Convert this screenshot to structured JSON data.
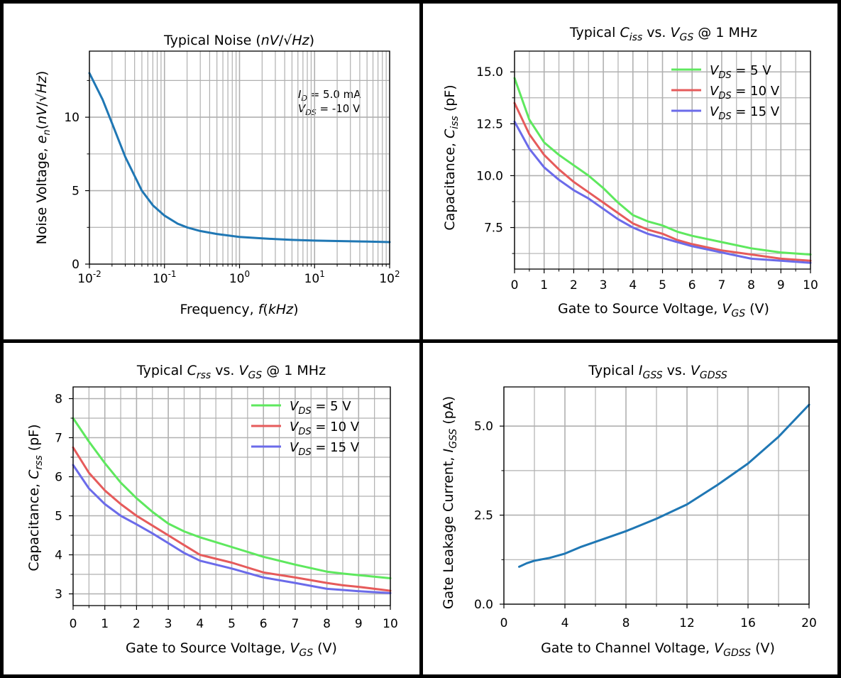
{
  "chart_data": [
    {
      "id": "noise",
      "type": "line",
      "title": "Typical Noise (nV/√Hz)",
      "xlabel": "Frequency, f(kHz)",
      "ylabel": "Noise Voltage, e_n(nV/√Hz)",
      "xscale": "log",
      "xlim": [
        0.01,
        100
      ],
      "ylim": [
        0,
        14.5
      ],
      "xticks": [
        0.01,
        0.1,
        1,
        10,
        100
      ],
      "xtick_labels": [
        "10⁻²",
        "10⁻¹",
        "10⁰",
        "10¹",
        "10²"
      ],
      "yticks": [
        0,
        5,
        10
      ],
      "ytick_labels": [
        "0",
        "5",
        "10"
      ],
      "grid": true,
      "annotations": [
        "I_D = 5.0 mA",
        "V_DS = -10 V"
      ],
      "series": [
        {
          "color": "#1f77b4",
          "x": [
            0.01,
            0.015,
            0.02,
            0.03,
            0.05,
            0.07,
            0.1,
            0.15,
            0.2,
            0.3,
            0.5,
            1,
            2,
            3,
            5,
            10,
            20,
            50,
            100
          ],
          "y": [
            13.0,
            11.2,
            9.6,
            7.3,
            5.0,
            4.0,
            3.3,
            2.75,
            2.5,
            2.25,
            2.05,
            1.85,
            1.75,
            1.7,
            1.65,
            1.6,
            1.57,
            1.53,
            1.5
          ]
        }
      ]
    },
    {
      "id": "ciss",
      "type": "line",
      "title": "Typical C_iss vs. V_GS @ 1 MHz",
      "xlabel": "Gate to Source Voltage, V_GS (V)",
      "ylabel": "Capacitance, C_iss (pF)",
      "xlim": [
        0,
        10
      ],
      "ylim": [
        5.5,
        16
      ],
      "xticks": [
        0,
        1,
        2,
        3,
        4,
        5,
        6,
        7,
        8,
        9,
        10
      ],
      "xtick_labels": [
        "0",
        "1",
        "2",
        "3",
        "4",
        "5",
        "6",
        "7",
        "8",
        "9",
        "10"
      ],
      "yticks": [
        7.5,
        10.0,
        12.5,
        15.0
      ],
      "ytick_labels": [
        "7.5",
        "10.0",
        "12.5",
        "15.0"
      ],
      "grid": true,
      "legend": "top-right",
      "legend_labels": [
        "V_DS = 5 V",
        "V_DS = 10 V",
        "V_DS = 15 V"
      ],
      "series": [
        {
          "name": "V_DS = 5 V",
          "color": "#5ee85e",
          "x": [
            0,
            0.5,
            1,
            1.5,
            2,
            2.5,
            3,
            3.5,
            4,
            4.5,
            5,
            5.5,
            6,
            7,
            8,
            9,
            10
          ],
          "y": [
            14.7,
            12.7,
            11.6,
            11.0,
            10.5,
            10.0,
            9.4,
            8.7,
            8.1,
            7.8,
            7.6,
            7.3,
            7.1,
            6.8,
            6.5,
            6.3,
            6.2
          ]
        },
        {
          "name": "V_DS = 10 V",
          "color": "#e65b5b",
          "x": [
            0,
            0.5,
            1,
            1.5,
            2,
            2.5,
            3,
            3.5,
            4,
            4.5,
            5,
            5.5,
            6,
            7,
            8,
            9,
            10
          ],
          "y": [
            13.5,
            12.0,
            11.0,
            10.3,
            9.7,
            9.2,
            8.7,
            8.2,
            7.7,
            7.4,
            7.2,
            6.9,
            6.7,
            6.4,
            6.2,
            6.0,
            5.9
          ]
        },
        {
          "name": "V_DS = 15 V",
          "color": "#6b6bea",
          "x": [
            0,
            0.5,
            1,
            1.5,
            2,
            2.5,
            3,
            3.5,
            4,
            4.5,
            5,
            5.5,
            6,
            7,
            8,
            9,
            10
          ],
          "y": [
            12.6,
            11.3,
            10.4,
            9.8,
            9.3,
            8.9,
            8.4,
            7.9,
            7.5,
            7.2,
            7.0,
            6.8,
            6.6,
            6.3,
            6.0,
            5.9,
            5.8
          ]
        }
      ]
    },
    {
      "id": "crss",
      "type": "line",
      "title": "Typical C_rss vs. V_GS @ 1 MHz",
      "xlabel": "Gate to Source Voltage, V_GS (V)",
      "ylabel": "Capacitance, C_rss (pF)",
      "xlim": [
        0,
        10
      ],
      "ylim": [
        2.7,
        8.3
      ],
      "xticks": [
        0,
        1,
        2,
        3,
        4,
        5,
        6,
        7,
        8,
        9,
        10
      ],
      "xtick_labels": [
        "0",
        "1",
        "2",
        "3",
        "4",
        "5",
        "6",
        "7",
        "8",
        "9",
        "10"
      ],
      "yticks": [
        3,
        4,
        5,
        6,
        7,
        8
      ],
      "ytick_labels": [
        "3",
        "4",
        "5",
        "6",
        "7",
        "8"
      ],
      "grid": true,
      "legend": "top-right",
      "legend_labels": [
        "V_DS = 5 V",
        "V_DS = 10 V",
        "V_DS = 15 V"
      ],
      "series": [
        {
          "name": "V_DS = 5 V",
          "color": "#5ee85e",
          "x": [
            0,
            0.5,
            1,
            1.5,
            2,
            2.5,
            3,
            3.5,
            4,
            5,
            6,
            7,
            8,
            8.5,
            9,
            10
          ],
          "y": [
            7.5,
            6.9,
            6.35,
            5.85,
            5.45,
            5.1,
            4.8,
            4.6,
            4.45,
            4.2,
            3.95,
            3.75,
            3.57,
            3.52,
            3.48,
            3.4
          ]
        },
        {
          "name": "V_DS = 10 V",
          "color": "#e65b5b",
          "x": [
            0,
            0.5,
            1,
            1.5,
            2,
            2.5,
            3,
            3.5,
            4,
            5,
            6,
            7,
            8,
            8.5,
            9,
            10
          ],
          "y": [
            6.75,
            6.1,
            5.65,
            5.3,
            5.0,
            4.75,
            4.5,
            4.25,
            4.0,
            3.8,
            3.55,
            3.42,
            3.28,
            3.22,
            3.18,
            3.08
          ]
        },
        {
          "name": "V_DS = 15 V",
          "color": "#6b6bea",
          "x": [
            0,
            0.5,
            1,
            1.5,
            2,
            2.5,
            3,
            3.5,
            4,
            5,
            6,
            7,
            8,
            8.5,
            9,
            10
          ],
          "y": [
            6.3,
            5.7,
            5.3,
            5.0,
            4.78,
            4.55,
            4.3,
            4.05,
            3.85,
            3.65,
            3.42,
            3.28,
            3.13,
            3.1,
            3.07,
            3.02
          ]
        }
      ]
    },
    {
      "id": "igss",
      "type": "line",
      "title": "Typical I_GSS vs. V_GDSS",
      "xlabel": "Gate to Channel Voltage, V_GDSS (V)",
      "ylabel": "Gate Leakage Current, I_GSS (pA)",
      "xlim": [
        0,
        20
      ],
      "ylim": [
        0,
        6.1
      ],
      "xticks": [
        0,
        4,
        8,
        12,
        16,
        20
      ],
      "xtick_labels": [
        "0",
        "4",
        "8",
        "12",
        "16",
        "20"
      ],
      "yticks": [
        0,
        2.5,
        5.0
      ],
      "ytick_labels": [
        "0.0",
        "2.5",
        "5.0"
      ],
      "grid": true,
      "series": [
        {
          "color": "#1f77b4",
          "x": [
            1,
            1.5,
            2,
            3,
            4,
            5,
            6,
            8,
            10,
            12,
            14,
            16,
            18,
            20
          ],
          "y": [
            1.05,
            1.15,
            1.22,
            1.3,
            1.42,
            1.6,
            1.75,
            2.05,
            2.4,
            2.8,
            3.35,
            3.95,
            4.7,
            5.6
          ]
        }
      ]
    }
  ]
}
